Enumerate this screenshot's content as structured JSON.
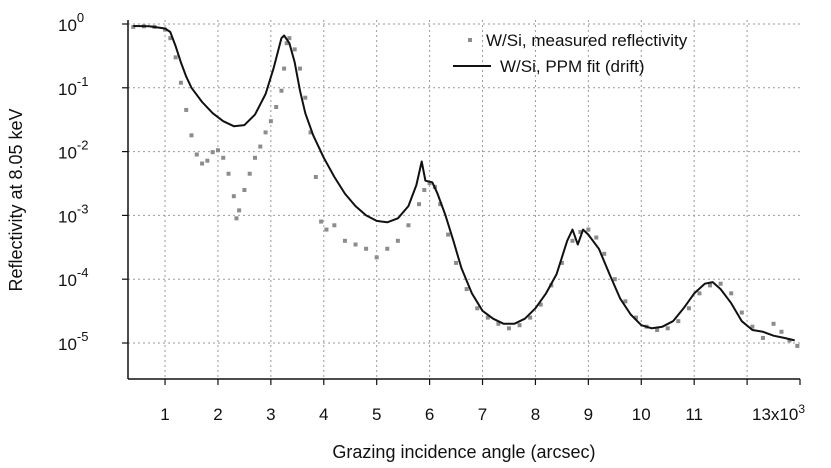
{
  "chart_data": {
    "type": "line",
    "title": "",
    "xlabel": "Grazing incidence angle (arcsec)",
    "ylabel": "Reflectivity at 8.05 keV",
    "xlim": [
      300,
      13000
    ],
    "ylim": [
      1e-06,
      1.5
    ],
    "yscale": "log",
    "grid": true,
    "legend_position": "top-right",
    "x_ticks": [
      {
        "value": 1000,
        "label": "1"
      },
      {
        "value": 2000,
        "label": "2"
      },
      {
        "value": 3000,
        "label": "3"
      },
      {
        "value": 4000,
        "label": "4"
      },
      {
        "value": 5000,
        "label": "5"
      },
      {
        "value": 6000,
        "label": "6"
      },
      {
        "value": 7000,
        "label": "7"
      },
      {
        "value": 8000,
        "label": "8"
      },
      {
        "value": 9000,
        "label": "9"
      },
      {
        "value": 10000,
        "label": "10"
      },
      {
        "value": 11000,
        "label": "11"
      },
      {
        "value": 13000,
        "label": "13x10"
      }
    ],
    "x_minor_grid": [
      12000
    ],
    "x_tick_exponent": "3",
    "y_ticks": [
      {
        "value": 1,
        "base": "10",
        "exp": "0"
      },
      {
        "value": 0.1,
        "base": "10",
        "exp": "-1"
      },
      {
        "value": 0.01,
        "base": "10",
        "exp": "-2"
      },
      {
        "value": 0.001,
        "base": "10",
        "exp": "-3"
      },
      {
        "value": 0.0001,
        "base": "10",
        "exp": "-4"
      },
      {
        "value": 1e-05,
        "base": "10",
        "exp": "-5"
      }
    ],
    "series": [
      {
        "name": "W/Si, measured reflectivity",
        "style": "markers",
        "color": "#8c8c8c",
        "points": [
          [
            400,
            0.9
          ],
          [
            600,
            0.92
          ],
          [
            800,
            0.9
          ],
          [
            1000,
            0.82
          ],
          [
            1100,
            0.6
          ],
          [
            1200,
            0.3
          ],
          [
            1300,
            0.12
          ],
          [
            1400,
            0.045
          ],
          [
            1500,
            0.018
          ],
          [
            1600,
            0.009
          ],
          [
            1700,
            0.0065
          ],
          [
            1800,
            0.0072
          ],
          [
            1900,
            0.0098
          ],
          [
            2000,
            0.0105
          ],
          [
            2100,
            0.008
          ],
          [
            2200,
            0.0045
          ],
          [
            2300,
            0.002
          ],
          [
            2350,
            0.0009
          ],
          [
            2400,
            0.0012
          ],
          [
            2500,
            0.0025
          ],
          [
            2600,
            0.0045
          ],
          [
            2700,
            0.008
          ],
          [
            2800,
            0.012
          ],
          [
            2900,
            0.02
          ],
          [
            3000,
            0.03
          ],
          [
            3100,
            0.05
          ],
          [
            3200,
            0.09
          ],
          [
            3250,
            0.2
          ],
          [
            3300,
            0.5
          ],
          [
            3350,
            0.6
          ],
          [
            3450,
            0.4
          ],
          [
            3550,
            0.2
          ],
          [
            3650,
            0.07
          ],
          [
            3750,
            0.02
          ],
          [
            3850,
            0.004
          ],
          [
            3950,
            0.0008
          ],
          [
            4050,
            0.0006
          ],
          [
            4200,
            0.0007
          ],
          [
            4400,
            0.0004
          ],
          [
            4600,
            0.00035
          ],
          [
            4800,
            0.0003
          ],
          [
            5000,
            0.00022
          ],
          [
            5200,
            0.0003
          ],
          [
            5400,
            0.0004
          ],
          [
            5600,
            0.0007
          ],
          [
            5800,
            0.0015
          ],
          [
            5900,
            0.0025
          ],
          [
            6000,
            0.0032
          ],
          [
            6100,
            0.0028
          ],
          [
            6200,
            0.0015
          ],
          [
            6350,
            0.0005
          ],
          [
            6500,
            0.00018
          ],
          [
            6700,
            7e-05
          ],
          [
            6900,
            3.5e-05
          ],
          [
            7100,
            2.5e-05
          ],
          [
            7300,
            2e-05
          ],
          [
            7500,
            1.7e-05
          ],
          [
            7700,
            1.9e-05
          ],
          [
            7900,
            2.5e-05
          ],
          [
            8100,
            4e-05
          ],
          [
            8300,
            8e-05
          ],
          [
            8500,
            0.00018
          ],
          [
            8700,
            0.0004
          ],
          [
            8850,
            0.00055
          ],
          [
            9000,
            0.0006
          ],
          [
            9150,
            0.00045
          ],
          [
            9300,
            0.00025
          ],
          [
            9500,
            0.0001
          ],
          [
            9700,
            4.5e-05
          ],
          [
            9900,
            2.5e-05
          ],
          [
            10100,
            1.8e-05
          ],
          [
            10300,
            1.6e-05
          ],
          [
            10500,
            1.7e-05
          ],
          [
            10700,
            2.2e-05
          ],
          [
            10900,
            3.5e-05
          ],
          [
            11100,
            6e-05
          ],
          [
            11300,
            8e-05
          ],
          [
            11500,
            8.5e-05
          ],
          [
            11700,
            6e-05
          ],
          [
            11900,
            3e-05
          ],
          [
            12100,
            1.8e-05
          ],
          [
            12300,
            1.2e-05
          ],
          [
            12500,
            2e-05
          ],
          [
            12650,
            1.5e-05
          ],
          [
            12800,
            1.1e-05
          ],
          [
            12950,
            9e-06
          ]
        ]
      },
      {
        "name": "W/Si, PPM fit (drift)",
        "style": "line",
        "color": "#111111",
        "points": [
          [
            400,
            0.93
          ],
          [
            700,
            0.92
          ],
          [
            1000,
            0.85
          ],
          [
            1100,
            0.75
          ],
          [
            1200,
            0.45
          ],
          [
            1300,
            0.25
          ],
          [
            1400,
            0.15
          ],
          [
            1500,
            0.1
          ],
          [
            1700,
            0.06
          ],
          [
            1900,
            0.04
          ],
          [
            2100,
            0.03
          ],
          [
            2300,
            0.025
          ],
          [
            2500,
            0.026
          ],
          [
            2700,
            0.038
          ],
          [
            2900,
            0.08
          ],
          [
            3050,
            0.2
          ],
          [
            3200,
            0.6
          ],
          [
            3250,
            0.66
          ],
          [
            3350,
            0.5
          ],
          [
            3450,
            0.25
          ],
          [
            3550,
            0.09
          ],
          [
            3650,
            0.04
          ],
          [
            3800,
            0.018
          ],
          [
            4000,
            0.008
          ],
          [
            4200,
            0.004
          ],
          [
            4400,
            0.0022
          ],
          [
            4600,
            0.0014
          ],
          [
            4800,
            0.001
          ],
          [
            5000,
            0.00082
          ],
          [
            5200,
            0.00078
          ],
          [
            5400,
            0.0009
          ],
          [
            5600,
            0.0014
          ],
          [
            5750,
            0.003
          ],
          [
            5850,
            0.007
          ],
          [
            5920,
            0.0035
          ],
          [
            6050,
            0.0033
          ],
          [
            6150,
            0.0022
          ],
          [
            6300,
            0.001
          ],
          [
            6450,
            0.0004
          ],
          [
            6600,
            0.00015
          ],
          [
            6800,
            6e-05
          ],
          [
            7000,
            3.2e-05
          ],
          [
            7200,
            2.4e-05
          ],
          [
            7400,
            2e-05
          ],
          [
            7600,
            2e-05
          ],
          [
            7800,
            2.4e-05
          ],
          [
            8000,
            3.5e-05
          ],
          [
            8200,
            6e-05
          ],
          [
            8400,
            0.00012
          ],
          [
            8600,
            0.0004
          ],
          [
            8700,
            0.0006
          ],
          [
            8800,
            0.00035
          ],
          [
            8900,
            0.0006
          ],
          [
            9000,
            0.0005
          ],
          [
            9200,
            0.0003
          ],
          [
            9400,
            0.00012
          ],
          [
            9600,
            5e-05
          ],
          [
            9800,
            2.8e-05
          ],
          [
            10000,
            1.9e-05
          ],
          [
            10200,
            1.7e-05
          ],
          [
            10400,
            1.8e-05
          ],
          [
            10600,
            2.2e-05
          ],
          [
            10800,
            3.5e-05
          ],
          [
            11000,
            6e-05
          ],
          [
            11200,
            8.5e-05
          ],
          [
            11350,
            9e-05
          ],
          [
            11500,
            7e-05
          ],
          [
            11700,
            4.2e-05
          ],
          [
            11900,
            2.2e-05
          ],
          [
            12100,
            1.6e-05
          ],
          [
            12300,
            1.5e-05
          ],
          [
            12500,
            1.3e-05
          ],
          [
            12700,
            1.2e-05
          ],
          [
            12900,
            1.1e-05
          ]
        ]
      }
    ]
  }
}
